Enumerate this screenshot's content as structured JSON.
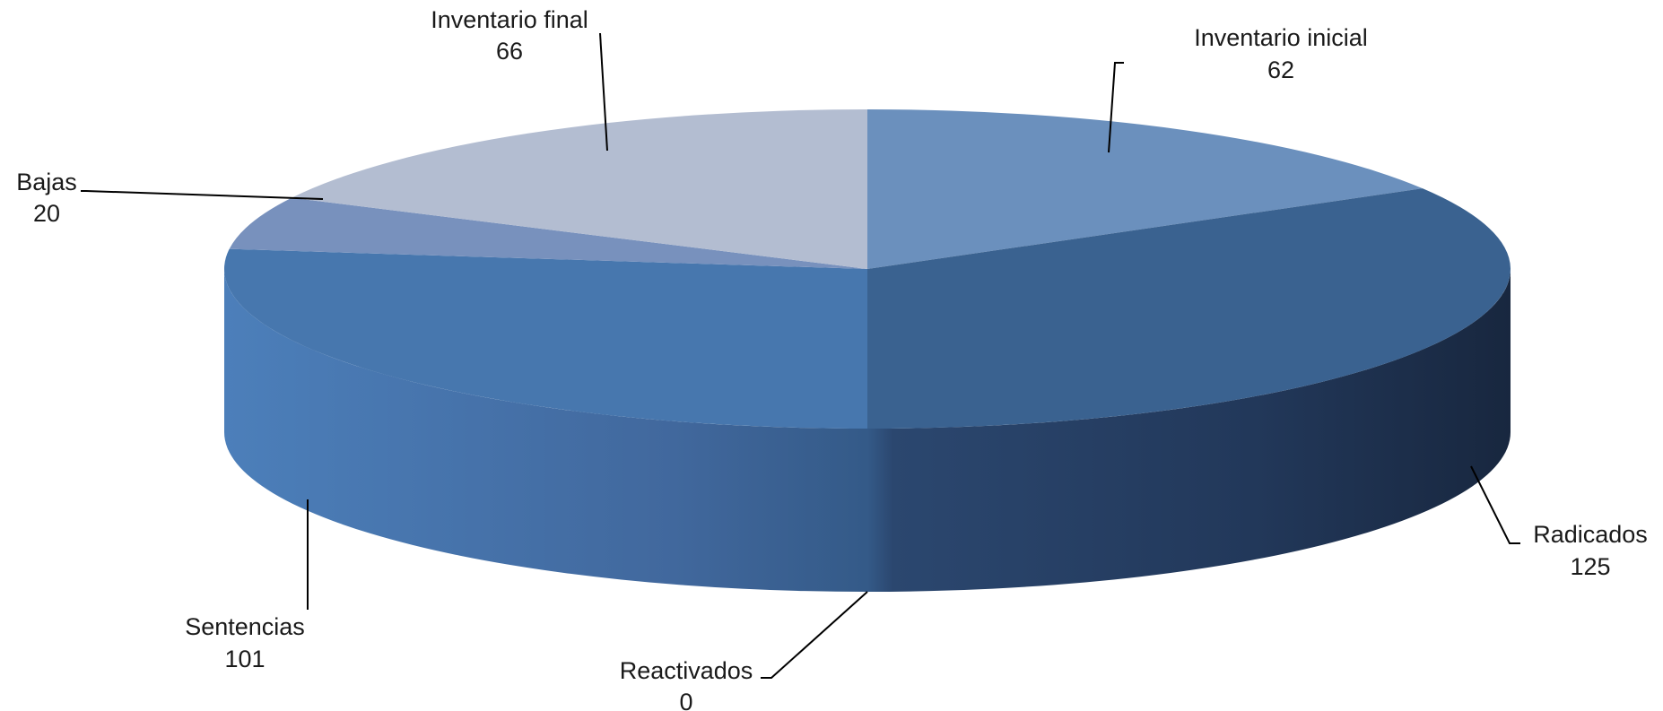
{
  "chart_data": {
    "type": "pie",
    "style": "3d",
    "categories": [
      "Inventario inicial",
      "Radicados",
      "Reactivados",
      "Sentencias",
      "Bajas",
      "Inventario final"
    ],
    "values": [
      62,
      125,
      0,
      101,
      20,
      66
    ],
    "colors": [
      "#6b90bd",
      "#3a6290",
      "#2f527c",
      "#4777ae",
      "#7891bd",
      "#b3bdd1"
    ],
    "title": "",
    "legend": "none",
    "data_labels": [
      {
        "name": "Inventario inicial",
        "value": "62"
      },
      {
        "name": "Radicados",
        "value": "125"
      },
      {
        "name": "Reactivados",
        "value": "0"
      },
      {
        "name": "Sentencias",
        "value": "101"
      },
      {
        "name": "Bajas",
        "value": "20"
      },
      {
        "name": "Inventario final",
        "value": "66"
      }
    ]
  }
}
